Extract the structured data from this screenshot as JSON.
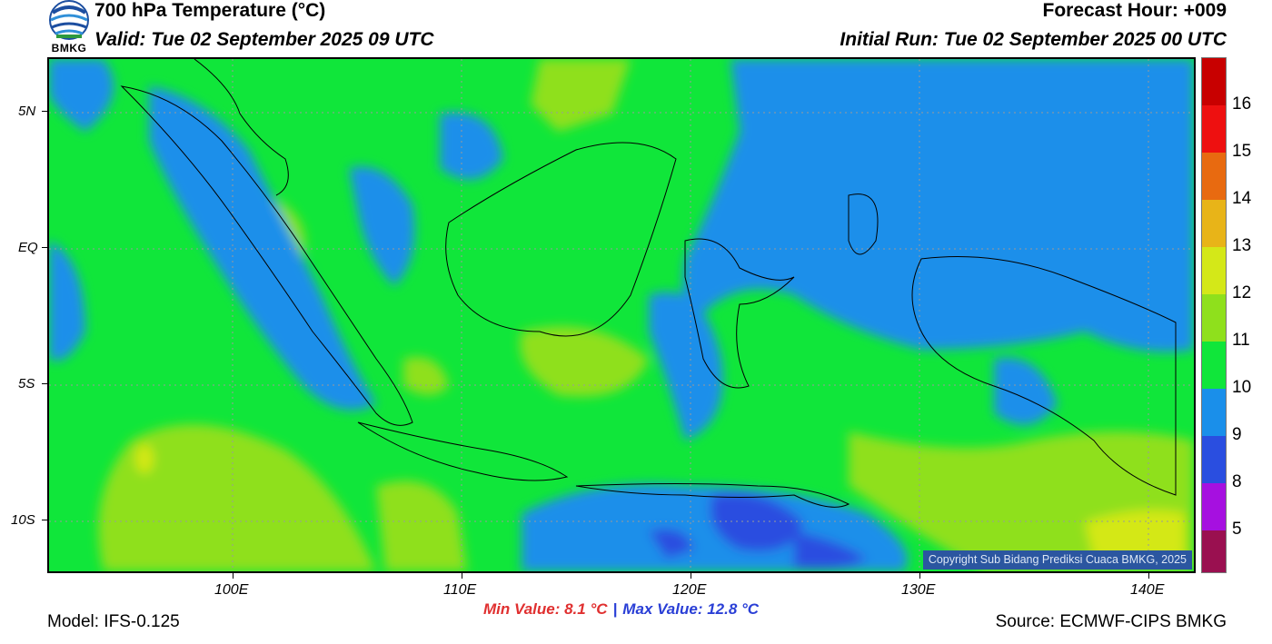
{
  "header": {
    "title": "700 hPa Temperature (°C)",
    "valid": "Valid: Tue 02 September 2025 09 UTC",
    "forecast_hour": "Forecast Hour: +009",
    "initial_run": "Initial Run: Tue 02 September 2025 00 UTC"
  },
  "logo": {
    "text": "BMKG",
    "icon": "bmkg-logo-icon"
  },
  "map": {
    "lat_labels": [
      "5N",
      "EQ",
      "5S",
      "10S"
    ],
    "lon_labels": [
      "100E",
      "110E",
      "120E",
      "130E",
      "140E"
    ],
    "lat_values": [
      5,
      0,
      -5,
      -10
    ],
    "lon_values": [
      100,
      110,
      120,
      130,
      140
    ],
    "lat_range": [
      -12,
      7
    ],
    "lon_range": [
      92,
      142
    ],
    "copyright": "Copyright Sub Bidang Prediksi Cuaca BMKG, 2025"
  },
  "colorbar": {
    "labels": [
      "16",
      "15",
      "14",
      "13",
      "12",
      "11",
      "10",
      "9",
      "8",
      "5"
    ],
    "colors": [
      "#c80000",
      "#ee1010",
      "#e86a10",
      "#e8b418",
      "#d4e818",
      "#8fe01c",
      "#10e63a",
      "#1a8fea",
      "#2a4ee0",
      "#a610e0",
      "#9a1050"
    ]
  },
  "footer": {
    "min_value": "Min Value: 8.1 °C",
    "separator": "|",
    "max_value": "Max Value: 12.8 °C",
    "model": "Model: IFS-0.125",
    "source": "Source: ECMWF-CIPS BMKG"
  }
}
